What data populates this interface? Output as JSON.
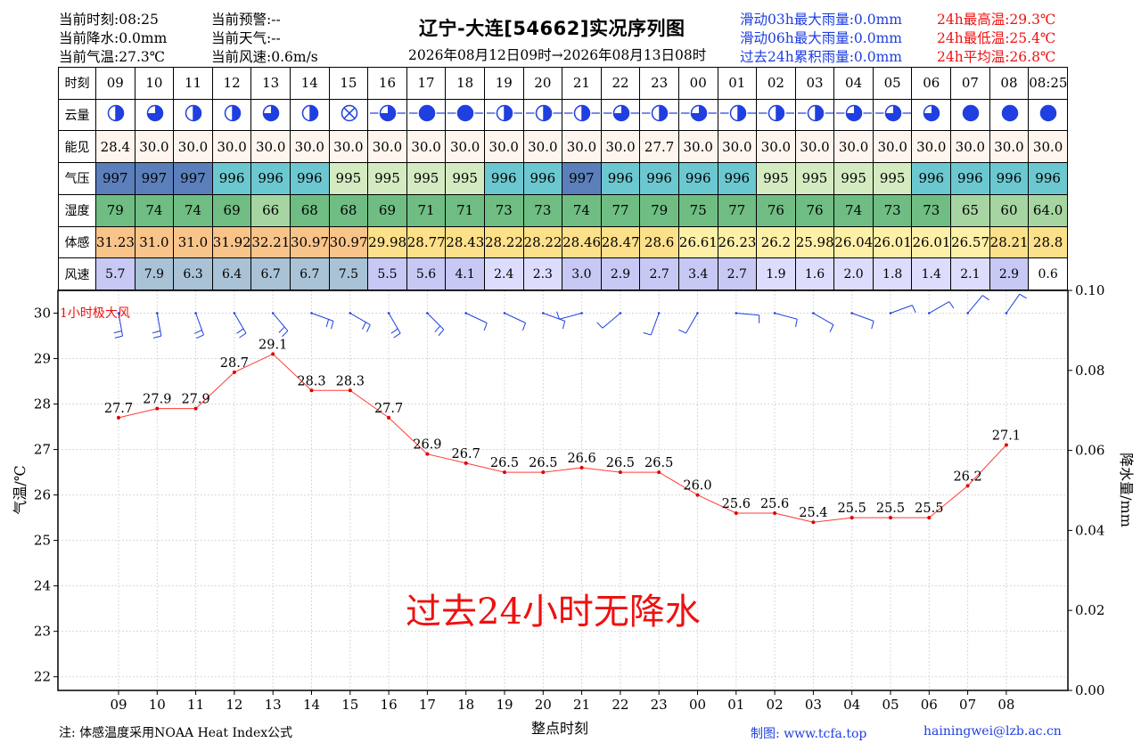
{
  "header": {
    "cur_time": "当前时刻:08:25",
    "cur_precip": "当前降水:0.0mm",
    "cur_temp": "当前气温:27.3℃",
    "cur_warning": "当前预警:--",
    "cur_weather": "当前天气:--",
    "cur_wind": "当前风速:0.6m/s",
    "title": "辽宁-大连[54662]实况序列图",
    "time_range": "2026年08月12日09时→2026年08月13日08时",
    "rain_3h": "滑动03h最大雨量:0.0mm",
    "rain_6h": "滑动06h最大雨量:0.0mm",
    "rain_24h": "过去24h累积雨量:0.0mm",
    "tmax": "24h最高温:29.3℃",
    "tmin": "24h最低温:25.4℃",
    "tavg": "24h平均温:26.8℃"
  },
  "table": {
    "row_labels": [
      "时刻",
      "云量",
      "能见",
      "气压",
      "湿度",
      "体感",
      "风速"
    ],
    "hours": [
      "09",
      "10",
      "11",
      "12",
      "13",
      "14",
      "15",
      "16",
      "17",
      "18",
      "19",
      "20",
      "21",
      "22",
      "23",
      "00",
      "01",
      "02",
      "03",
      "04",
      "05",
      "06",
      "07",
      "08",
      "08:25"
    ],
    "cloud_cover": [
      0.5,
      0.75,
      0.5,
      0.5,
      0.75,
      0.5,
      -1,
      0.75,
      1,
      1,
      0.5,
      0.5,
      0.5,
      0.75,
      0.5,
      0.75,
      0.5,
      0.5,
      0.5,
      0.75,
      0.75,
      0.75,
      1,
      1,
      1
    ],
    "visibility": [
      "28.4",
      "30.0",
      "30.0",
      "30.0",
      "30.0",
      "30.0",
      "30.0",
      "30.0",
      "30.0",
      "30.0",
      "30.0",
      "30.0",
      "30.0",
      "30.0",
      "27.7",
      "30.0",
      "30.0",
      "30.0",
      "30.0",
      "30.0",
      "30.0",
      "30.0",
      "30.0",
      "30.0",
      "30.0"
    ],
    "pressure": [
      "997",
      "997",
      "997",
      "996",
      "996",
      "996",
      "995",
      "995",
      "995",
      "995",
      "996",
      "996",
      "997",
      "996",
      "996",
      "996",
      "996",
      "995",
      "995",
      "995",
      "995",
      "996",
      "996",
      "996",
      "996"
    ],
    "humidity": [
      "79",
      "74",
      "74",
      "69",
      "66",
      "68",
      "68",
      "69",
      "71",
      "71",
      "73",
      "73",
      "74",
      "77",
      "79",
      "75",
      "77",
      "76",
      "76",
      "74",
      "73",
      "73",
      "65",
      "60",
      "64.0"
    ],
    "feels_like": [
      "31.23",
      "31.0",
      "31.0",
      "31.92",
      "32.21",
      "30.97",
      "30.97",
      "29.98",
      "28.77",
      "28.43",
      "28.22",
      "28.22",
      "28.46",
      "28.47",
      "28.6",
      "26.61",
      "26.23",
      "26.2",
      "25.98",
      "26.04",
      "26.01",
      "26.01",
      "26.57",
      "28.21",
      "28.8"
    ],
    "wind_speed": [
      "5.7",
      "7.9",
      "6.3",
      "6.4",
      "6.7",
      "6.7",
      "7.5",
      "5.5",
      "5.6",
      "4.1",
      "2.4",
      "2.3",
      "3.0",
      "2.9",
      "2.7",
      "3.4",
      "2.7",
      "1.9",
      "1.6",
      "2.0",
      "1.8",
      "1.4",
      "2.1",
      "2.9",
      "0.6"
    ]
  },
  "colors": {
    "pressure": {
      "997": "#5b7fbb",
      "996": "#6cc8d0",
      "995": "#d4ebc2"
    },
    "humidity_hi": "#6fbd83",
    "humidity_lo": "#a6d5a2",
    "feels_hot": "#f8c48a",
    "feels_warm": "#fde08a",
    "feels_mild": "#fff0a8",
    "wind_hi": "#a9c2d6",
    "wind_mid": "#c7c8f4",
    "wind_lo": "#dcdcfc",
    "temp_line": "#ff3b3b",
    "barb": "#1f3fe0",
    "cloud": "#1f3fe0"
  },
  "chart_data": {
    "type": "line",
    "x": [
      "09",
      "10",
      "11",
      "12",
      "13",
      "14",
      "15",
      "16",
      "17",
      "18",
      "19",
      "20",
      "21",
      "22",
      "23",
      "00",
      "01",
      "02",
      "03",
      "04",
      "05",
      "06",
      "07",
      "08"
    ],
    "series": [
      {
        "values": [
          27.7,
          27.9,
          27.9,
          28.7,
          29.1,
          28.3,
          28.3,
          27.7,
          26.9,
          26.7,
          26.5,
          26.5,
          26.6,
          26.5,
          26.5,
          26.0,
          25.6,
          25.6,
          25.4,
          25.5,
          25.5,
          25.5,
          26.2,
          27.1
        ]
      }
    ],
    "point_labels": [
      "27.7",
      "27.9",
      "27.9",
      "28.7",
      "29.1",
      "28.3",
      "28.3",
      "27.7",
      "26.9",
      "26.7",
      "26.5",
      "26.5",
      "26.6",
      "26.5",
      "26.5",
      "26.0",
      "25.6",
      "25.6",
      "25.4",
      "25.5",
      "25.5",
      "25.5",
      "26.2",
      "27.1"
    ],
    "xlabel": "整点时刻",
    "ylabel": "气温/℃",
    "y2label": "降水量/mm",
    "ylim": [
      21.7,
      30.5
    ],
    "yticks": [
      22,
      23,
      24,
      25,
      26,
      27,
      28,
      29,
      30
    ],
    "y2lim": [
      0.0,
      0.1
    ],
    "y2ticks": [
      "0.00",
      "0.02",
      "0.04",
      "0.06",
      "0.08",
      "0.10"
    ],
    "wind_barb_label": "1小时极大风",
    "wind_dir_deg": [
      170,
      170,
      160,
      150,
      140,
      110,
      120,
      150,
      135,
      115,
      115,
      110,
      255,
      230,
      200,
      210,
      95,
      105,
      120,
      110,
      70,
      60,
      40,
      35
    ],
    "no_precip_text": "过去24小时无降水",
    "grid": true
  },
  "footer": {
    "note": "注: 体感温度采用NOAA Heat Index公式",
    "made_by": "制图: www.tcfa.top",
    "email": "hainingwei@lzb.ac.cn"
  }
}
